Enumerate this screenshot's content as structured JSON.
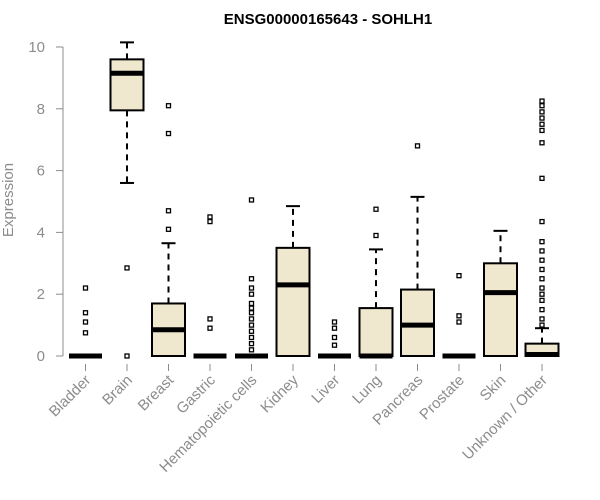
{
  "chart_data": {
    "type": "box",
    "title": "ENSG00000165643 - SOHLH1",
    "ylabel": "Expression",
    "xlabel": "",
    "ylim": [
      0,
      10
    ],
    "yticks": [
      0,
      2,
      4,
      6,
      8,
      10
    ],
    "grid": false,
    "box_fill": "#efe8cf",
    "box_stroke": "#000000",
    "axis_color": "#8c8c8c",
    "categories": [
      "Bladder",
      "Brain",
      "Breast",
      "Gastric",
      "Hematopoietic cells",
      "Kidney",
      "Liver",
      "Lung",
      "Pancreas",
      "Prostate",
      "Skin",
      "Unknown / Other"
    ],
    "boxes": [
      {
        "q1": 0,
        "median": 0,
        "q3": 0,
        "whisker_low": 0,
        "whisker_high": 0,
        "outliers": [
          0.75,
          1.1,
          1.4,
          2.2
        ]
      },
      {
        "q1": 7.95,
        "median": 9.15,
        "q3": 9.6,
        "whisker_low": 5.6,
        "whisker_high": 10.15,
        "outliers": [
          2.85,
          0
        ]
      },
      {
        "q1": 0,
        "median": 0.85,
        "q3": 1.7,
        "whisker_low": 0,
        "whisker_high": 3.65,
        "outliers": [
          4.1,
          4.7,
          7.2,
          8.1
        ]
      },
      {
        "q1": 0,
        "median": 0,
        "q3": 0,
        "whisker_low": 0,
        "whisker_high": 0,
        "outliers": [
          0.9,
          1.2,
          4.35,
          4.5
        ]
      },
      {
        "q1": 0,
        "median": 0,
        "q3": 0,
        "whisker_low": 0,
        "whisker_high": 0,
        "outliers": [
          0.2,
          0.4,
          0.6,
          0.8,
          1.0,
          1.2,
          1.4,
          1.55,
          1.7,
          2.0,
          2.2,
          2.5,
          5.05
        ]
      },
      {
        "q1": 0,
        "median": 2.3,
        "q3": 3.5,
        "whisker_low": 0,
        "whisker_high": 4.85,
        "outliers": []
      },
      {
        "q1": 0,
        "median": 0,
        "q3": 0,
        "whisker_low": 0,
        "whisker_high": 0,
        "outliers": [
          0.35,
          0.6,
          0.9,
          1.1
        ]
      },
      {
        "q1": 0,
        "median": 0,
        "q3": 1.55,
        "whisker_low": 0,
        "whisker_high": 3.45,
        "outliers": [
          3.9,
          4.75
        ]
      },
      {
        "q1": 0,
        "median": 1.0,
        "q3": 2.15,
        "whisker_low": 0,
        "whisker_high": 5.15,
        "outliers": [
          6.8
        ]
      },
      {
        "q1": 0,
        "median": 0,
        "q3": 0,
        "whisker_low": 0,
        "whisker_high": 0,
        "outliers": [
          1.1,
          1.3,
          2.6
        ]
      },
      {
        "q1": 0,
        "median": 2.05,
        "q3": 3.0,
        "whisker_low": 0,
        "whisker_high": 4.05,
        "outliers": []
      },
      {
        "q1": 0,
        "median": 0.05,
        "q3": 0.4,
        "whisker_low": 0,
        "whisker_high": 0.9,
        "outliers": [
          1.0,
          1.2,
          1.5,
          1.8,
          2.0,
          2.2,
          2.5,
          2.8,
          3.1,
          3.4,
          3.7,
          4.35,
          5.75,
          6.9,
          7.3,
          7.5,
          7.7,
          7.9,
          8.1,
          8.25
        ]
      }
    ]
  }
}
